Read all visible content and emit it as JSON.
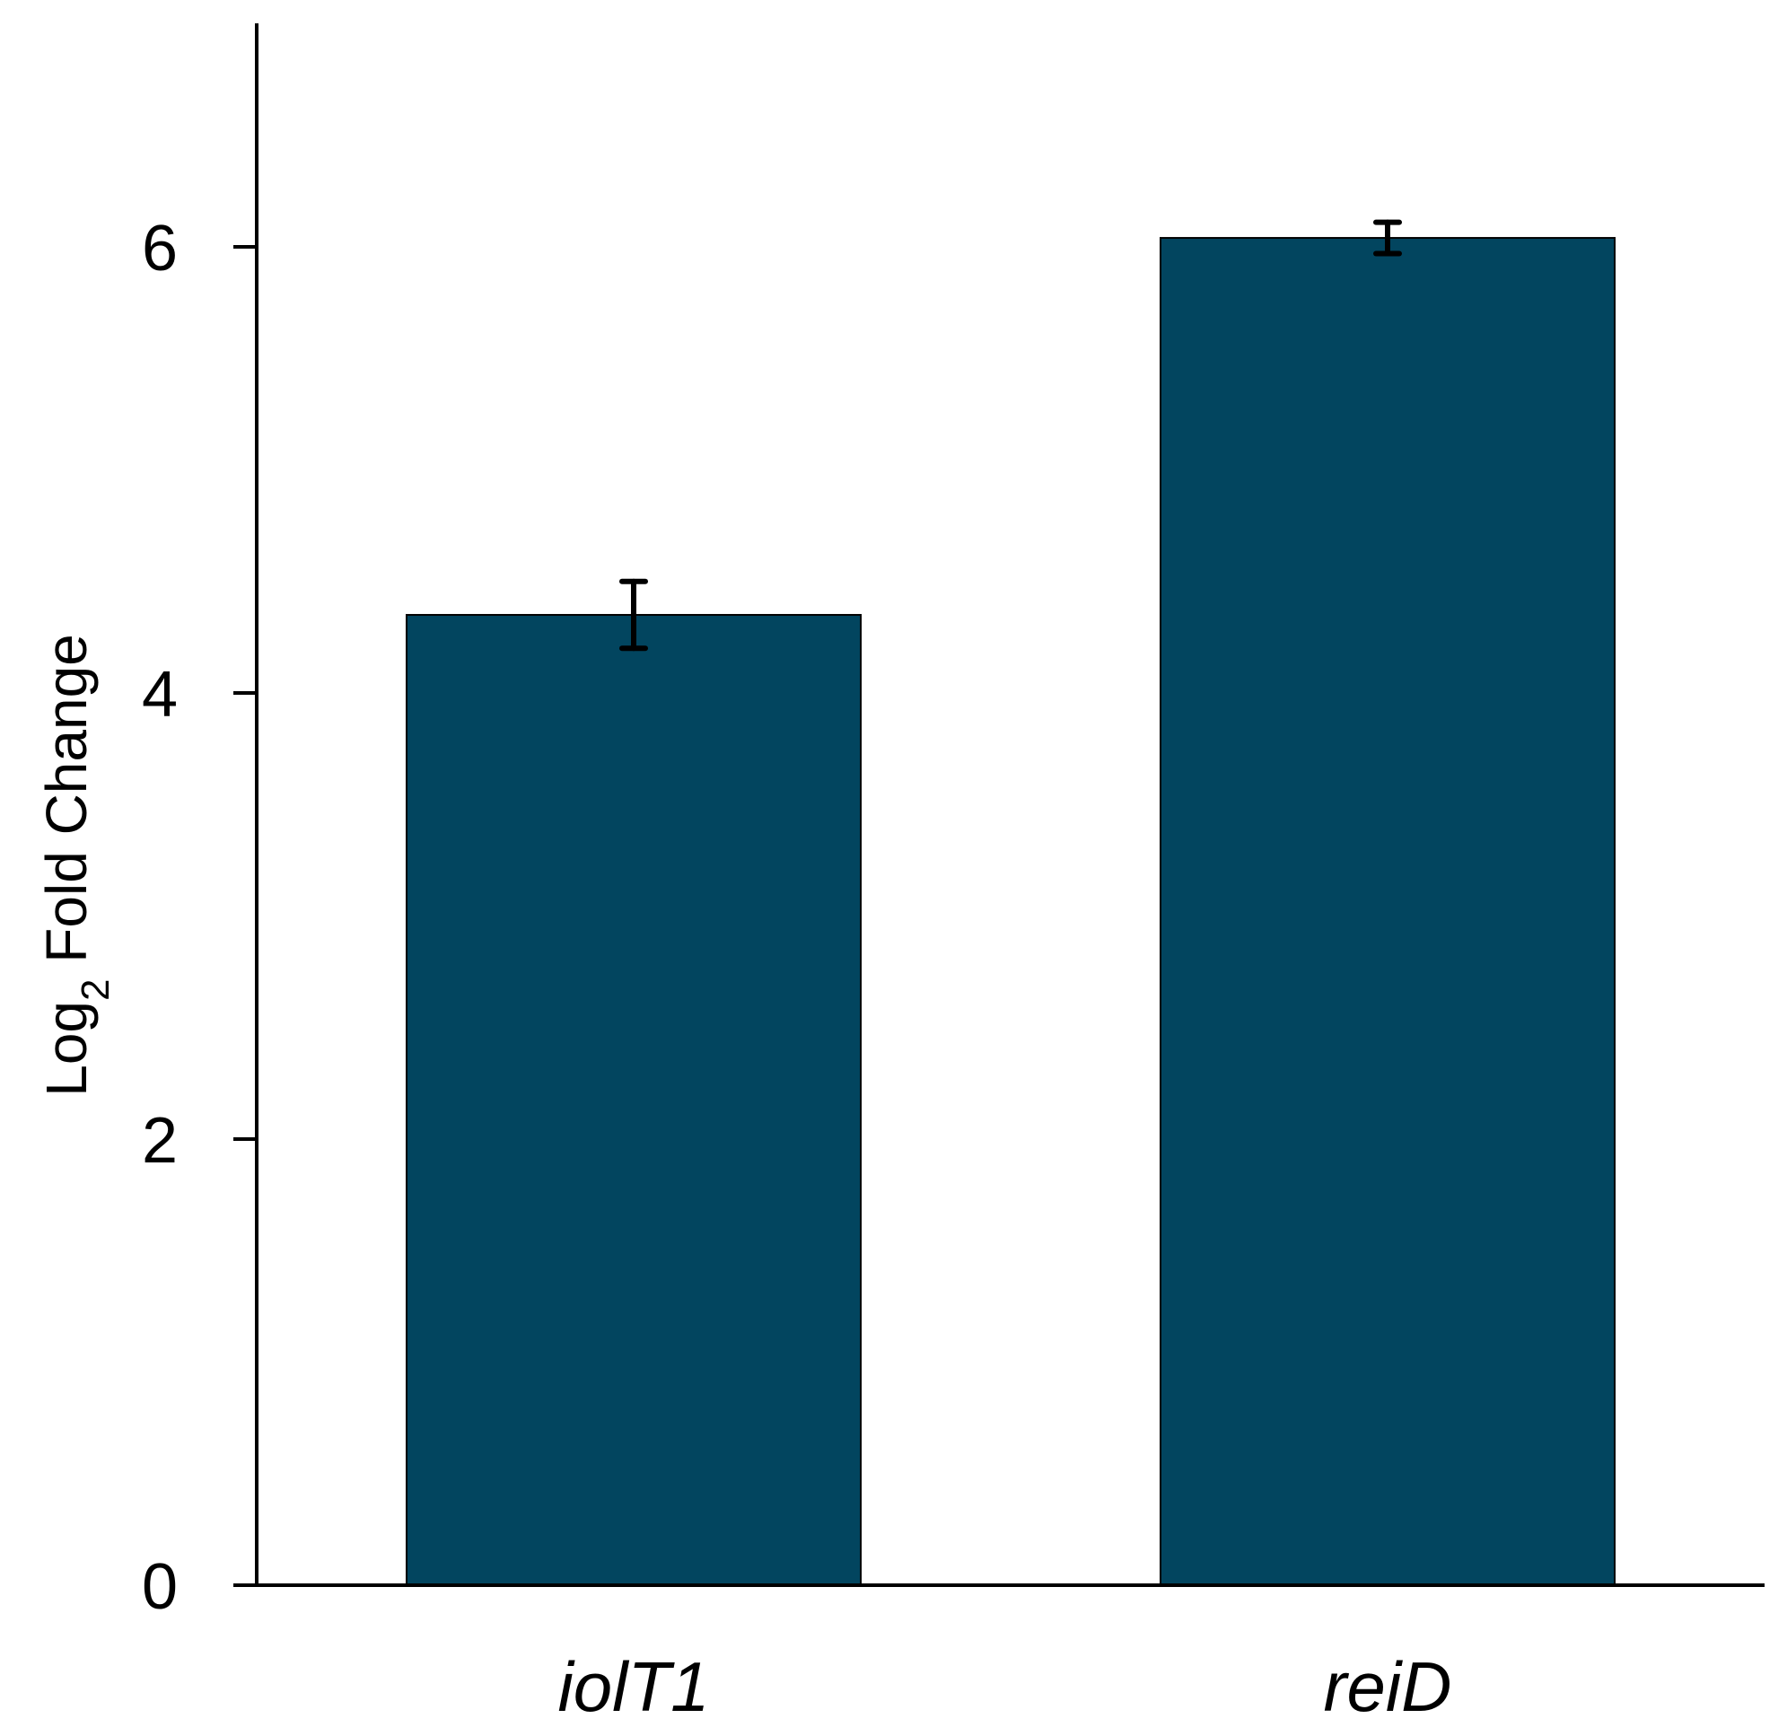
{
  "chart_data": {
    "type": "bar",
    "categories": [
      "iolT1",
      "reiD"
    ],
    "values": [
      4.35,
      6.04
    ],
    "errors": [
      0.15,
      0.07
    ],
    "title": "",
    "xlabel": "",
    "ylabel": {
      "prefix": "Log",
      "subscript": "2",
      "suffix": " Fold Change"
    },
    "ylim": [
      0,
      7
    ],
    "yticks": [
      "0",
      "2",
      "4",
      "6"
    ],
    "grid": false,
    "bar_color": "#02455f"
  }
}
